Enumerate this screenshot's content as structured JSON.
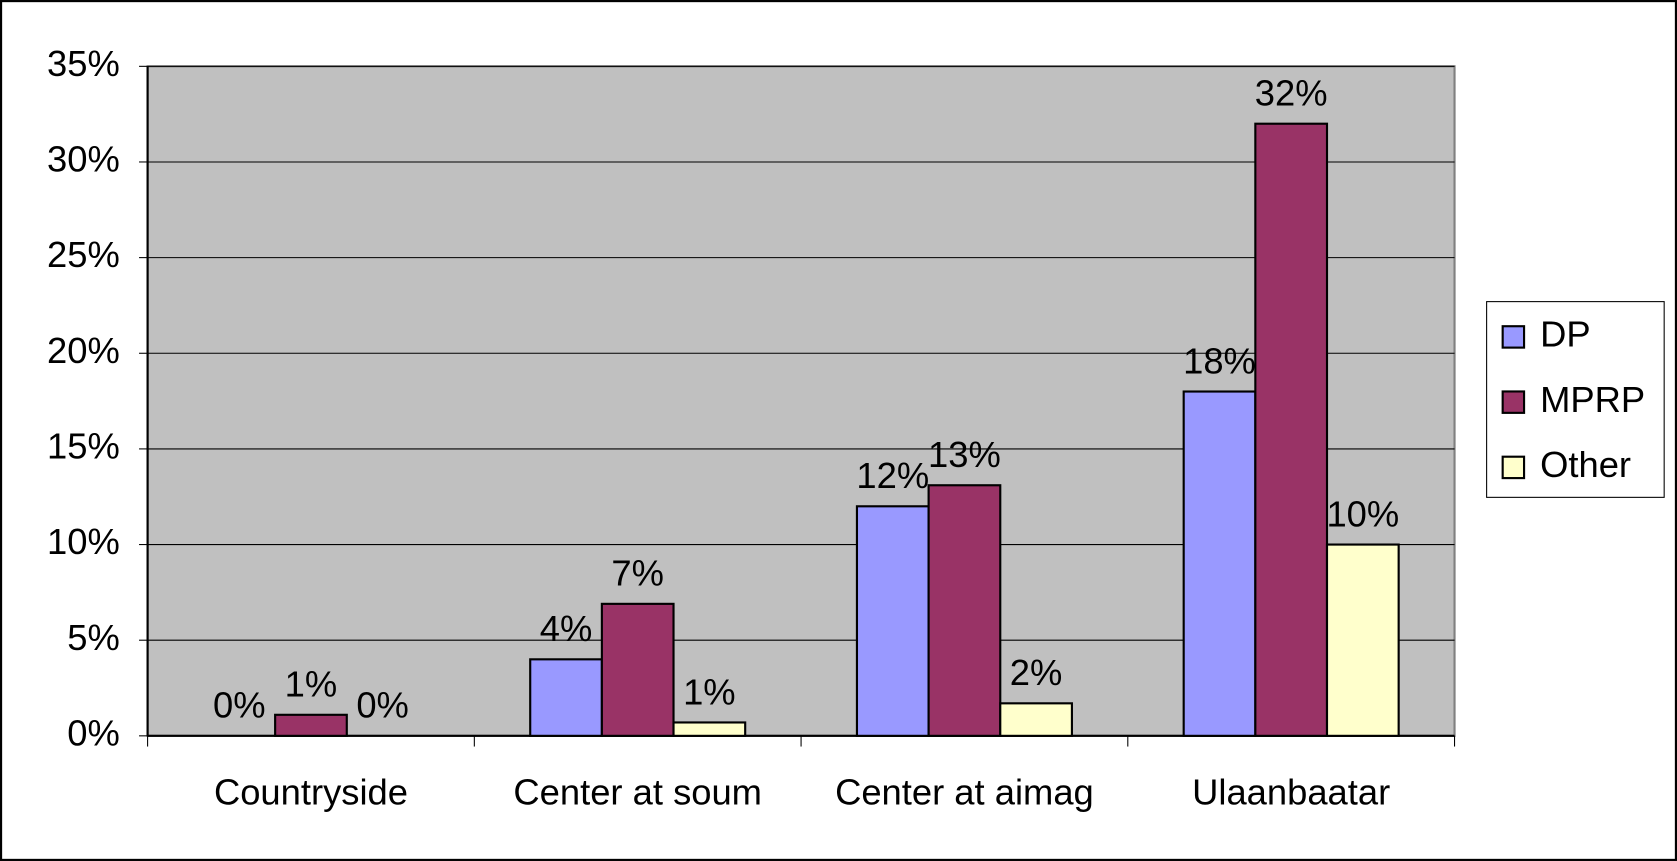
{
  "chart_data": {
    "type": "bar",
    "categories": [
      "Countryside",
      "Center at soum",
      "Center at aimag",
      "Ulaanbaatar"
    ],
    "series": [
      {
        "name": "DP",
        "color": "#9999ff",
        "values": [
          0,
          4,
          12,
          18
        ],
        "value_labels": [
          "0%",
          "4%",
          "12%",
          "18%"
        ]
      },
      {
        "name": "MPRP",
        "color": "#993366",
        "values": [
          1.1,
          6.9,
          13.1,
          32
        ],
        "value_labels": [
          "1%",
          "7%",
          "13%",
          "32%"
        ]
      },
      {
        "name": "Other",
        "color": "#ffffcc",
        "values": [
          0,
          0.7,
          1.7,
          10
        ],
        "value_labels": [
          "0%",
          "1%",
          "2%",
          "10%"
        ]
      }
    ],
    "ylim": [
      0,
      35
    ],
    "yticks": [
      {
        "value": 0,
        "label": "0%"
      },
      {
        "value": 5,
        "label": "5%"
      },
      {
        "value": 10,
        "label": "10%"
      },
      {
        "value": 15,
        "label": "15%"
      },
      {
        "value": 20,
        "label": "20%"
      },
      {
        "value": 25,
        "label": "25%"
      },
      {
        "value": 30,
        "label": "30%"
      },
      {
        "value": 35,
        "label": "35%"
      }
    ],
    "grid": true,
    "legend": "right"
  }
}
